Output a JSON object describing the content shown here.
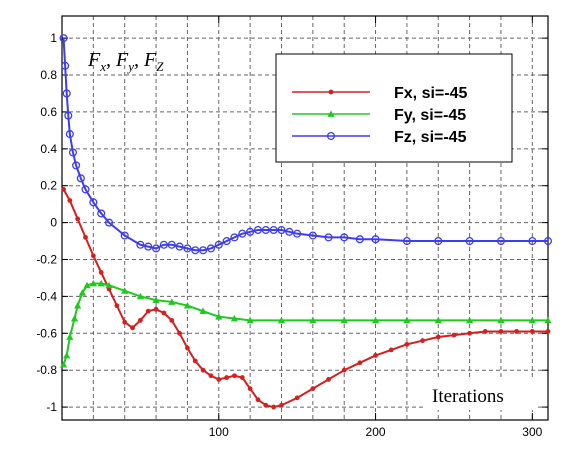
{
  "chart_data": {
    "type": "line",
    "ylabel_parts": [
      {
        "main": "F",
        "sub": "x",
        "sep": ","
      },
      {
        "main": "F",
        "sub": "y",
        "sep": ","
      },
      {
        "main": "F",
        "sub": "Z",
        "sep": ""
      }
    ],
    "xlabel": "Iterations",
    "xlim": [
      0,
      310
    ],
    "ylim": [
      -1.07,
      1.12
    ],
    "x_ticks": [
      100,
      200,
      300
    ],
    "y_ticks": [
      1,
      0.8,
      0.6,
      0.4,
      0.2,
      0,
      -0.2,
      -0.4,
      -0.6,
      -0.8,
      -1
    ],
    "y_tick_labels": [
      "1",
      "0.8",
      "0.6",
      "0.4",
      "0.2",
      "0",
      "-0.2",
      "-0.4",
      "-0.6",
      "-0.8",
      "-1"
    ],
    "x_tick_labels": [
      "100",
      "200",
      "300"
    ],
    "grid": true,
    "legend_position": "top-right",
    "series": [
      {
        "name": "Fx, si=-45",
        "color": "#d42020",
        "marker": "dot",
        "x": [
          1,
          5,
          10,
          15,
          20,
          25,
          30,
          35,
          40,
          45,
          50,
          55,
          60,
          65,
          70,
          75,
          80,
          85,
          90,
          95,
          100,
          105,
          110,
          115,
          120,
          125,
          130,
          135,
          140,
          150,
          160,
          170,
          180,
          190,
          200,
          210,
          220,
          230,
          240,
          250,
          260,
          270,
          280,
          290,
          300,
          310
        ],
        "y": [
          0.18,
          0.12,
          0.02,
          -0.08,
          -0.18,
          -0.27,
          -0.36,
          -0.45,
          -0.54,
          -0.57,
          -0.53,
          -0.48,
          -0.47,
          -0.49,
          -0.53,
          -0.6,
          -0.68,
          -0.75,
          -0.8,
          -0.83,
          -0.85,
          -0.84,
          -0.83,
          -0.84,
          -0.9,
          -0.96,
          -0.99,
          -1.0,
          -0.99,
          -0.95,
          -0.9,
          -0.85,
          -0.8,
          -0.76,
          -0.72,
          -0.69,
          -0.66,
          -0.64,
          -0.62,
          -0.61,
          -0.6,
          -0.59,
          -0.59,
          -0.59,
          -0.59,
          -0.59
        ]
      },
      {
        "name": "Fy, si=-45",
        "color": "#20c820",
        "marker": "triangle",
        "x": [
          1,
          3,
          5,
          8,
          10,
          13,
          16,
          20,
          25,
          30,
          40,
          50,
          60,
          70,
          80,
          90,
          100,
          110,
          120,
          140,
          160,
          180,
          200,
          220,
          240,
          260,
          280,
          300,
          310
        ],
        "y": [
          -0.77,
          -0.72,
          -0.62,
          -0.52,
          -0.45,
          -0.38,
          -0.34,
          -0.33,
          -0.33,
          -0.34,
          -0.37,
          -0.4,
          -0.42,
          -0.43,
          -0.45,
          -0.48,
          -0.51,
          -0.52,
          -0.53,
          -0.53,
          -0.53,
          -0.53,
          -0.53,
          -0.53,
          -0.53,
          -0.53,
          -0.53,
          -0.53,
          -0.53
        ]
      },
      {
        "name": "Fz, si=-45",
        "color": "#3c3cf0",
        "marker": "circle",
        "x": [
          1,
          2,
          3,
          4,
          5,
          7,
          9,
          12,
          15,
          20,
          25,
          30,
          40,
          50,
          55,
          60,
          65,
          70,
          75,
          80,
          85,
          90,
          95,
          100,
          105,
          110,
          115,
          120,
          125,
          130,
          135,
          140,
          145,
          150,
          160,
          170,
          180,
          190,
          200,
          220,
          240,
          260,
          280,
          300,
          310
        ],
        "y": [
          1.0,
          0.85,
          0.7,
          0.58,
          0.48,
          0.38,
          0.31,
          0.24,
          0.18,
          0.11,
          0.05,
          0.0,
          -0.07,
          -0.12,
          -0.13,
          -0.14,
          -0.12,
          -0.12,
          -0.13,
          -0.14,
          -0.15,
          -0.15,
          -0.14,
          -0.12,
          -0.1,
          -0.08,
          -0.06,
          -0.05,
          -0.04,
          -0.04,
          -0.04,
          -0.04,
          -0.05,
          -0.06,
          -0.07,
          -0.08,
          -0.08,
          -0.09,
          -0.09,
          -0.1,
          -0.1,
          -0.1,
          -0.1,
          -0.1,
          -0.1
        ]
      }
    ]
  }
}
